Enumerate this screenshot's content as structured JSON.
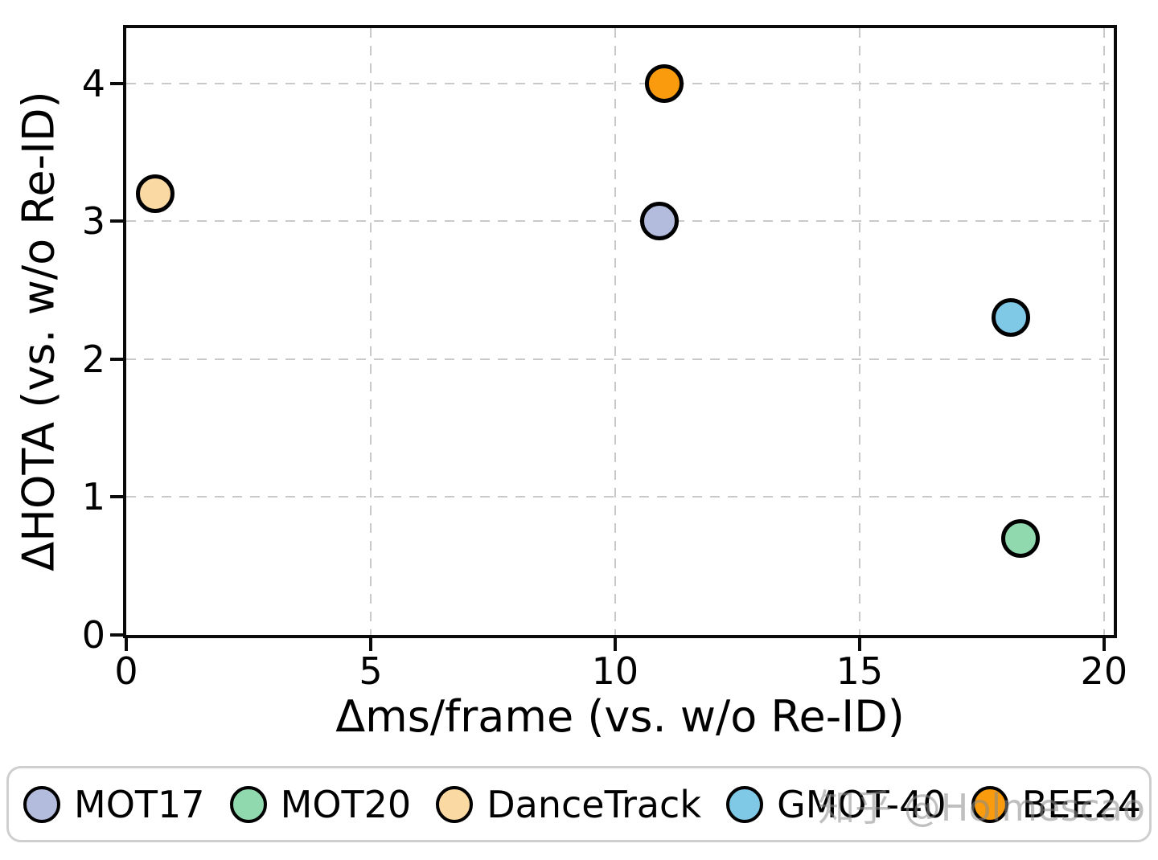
{
  "chart_data": {
    "type": "scatter",
    "title": "",
    "xlabel": "Δms/frame (vs. w/o Re-ID)",
    "ylabel": "ΔHOTA (vs. w/o Re-ID)",
    "xlim": [
      0,
      20.2
    ],
    "ylim": [
      0,
      4.4
    ],
    "xticks": [
      0,
      5,
      10,
      15,
      20
    ],
    "yticks": [
      0,
      1,
      2,
      3,
      4
    ],
    "grid": true,
    "grid_style": "dashed",
    "legend_position": "bottom",
    "series": [
      {
        "name": "MOT17",
        "color": "#b3bcdd",
        "x": 10.9,
        "y": 3.0
      },
      {
        "name": "MOT20",
        "color": "#90d8ae",
        "x": 18.3,
        "y": 0.7
      },
      {
        "name": "DanceTrack",
        "color": "#fbd9a3",
        "x": 0.6,
        "y": 3.2
      },
      {
        "name": "GMOT-40",
        "color": "#7fc8e6",
        "x": 18.1,
        "y": 2.3
      },
      {
        "name": "BEE24",
        "color": "#f99b0c",
        "x": 11.0,
        "y": 4.0
      }
    ]
  },
  "watermark": {
    "text": "知乎 @Holmescao",
    "color": "#8c8c8c"
  },
  "colors": {
    "grid": "#c9c9c9",
    "spine": "#0a0a0a",
    "marker_edge": "#000000",
    "legend_border": "#cfcfcf",
    "background": "#ffffff"
  }
}
